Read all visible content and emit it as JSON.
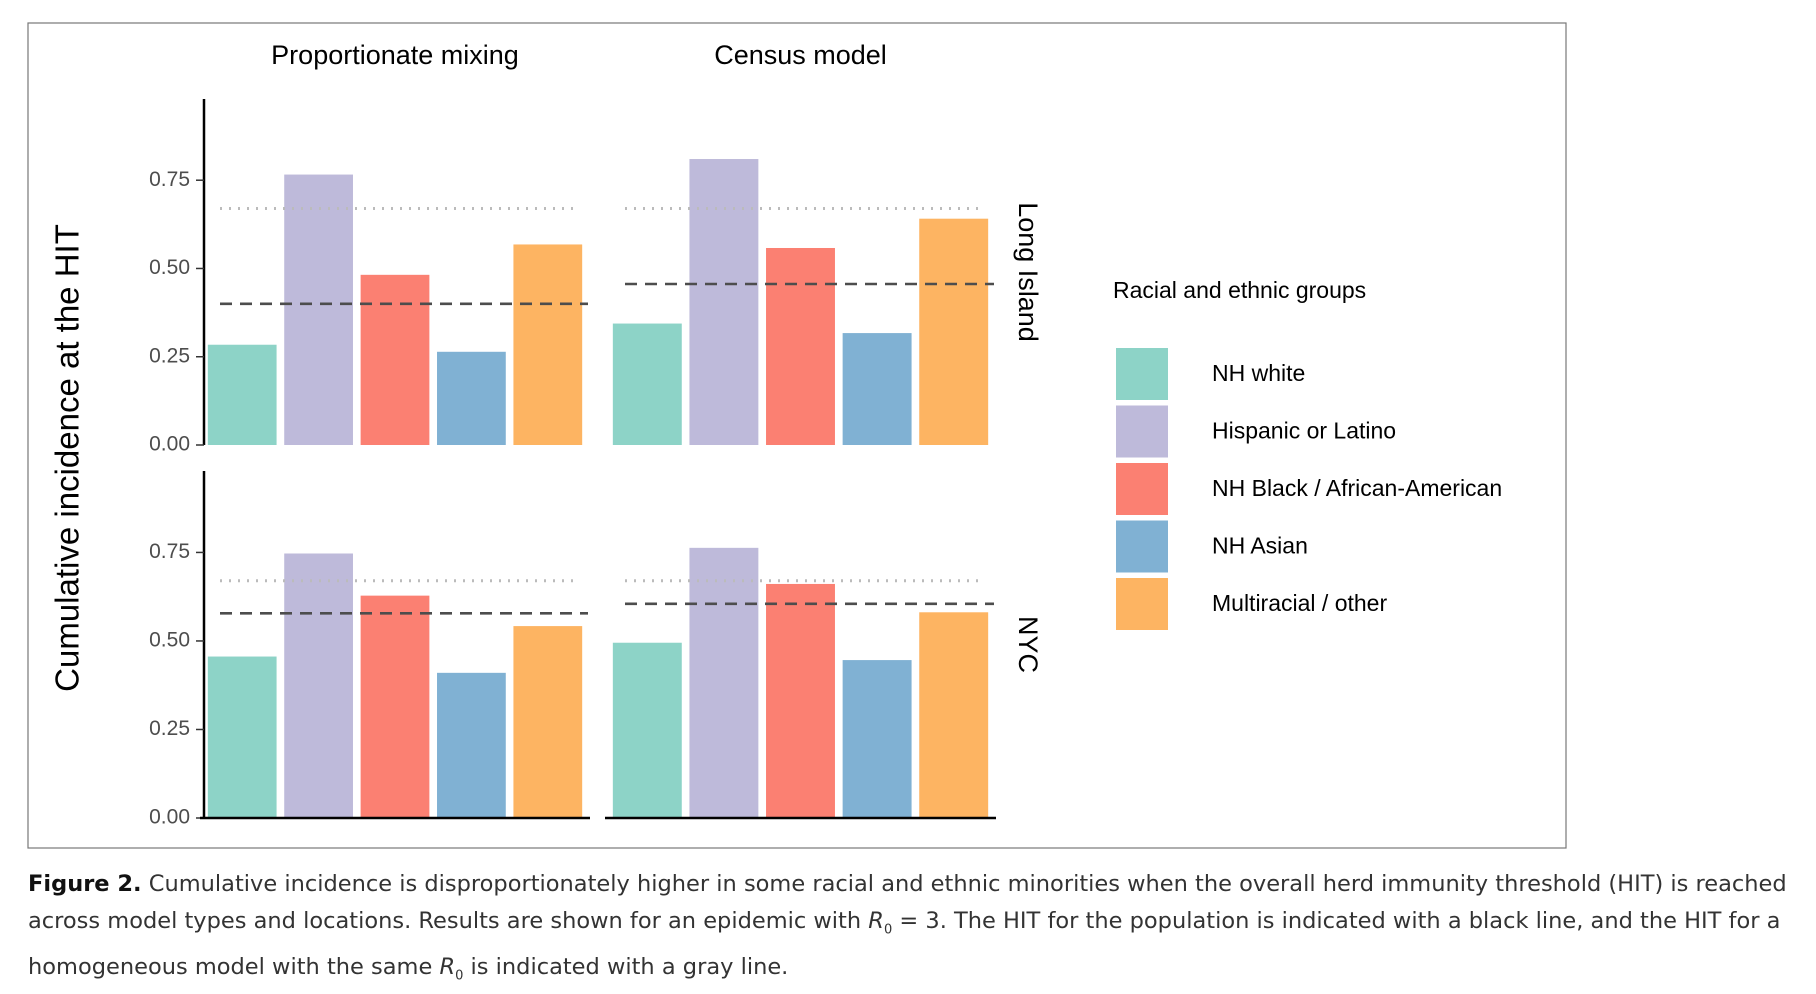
{
  "chart_data": {
    "type": "bar",
    "ylabel": "Cumulative incidence at the HIT",
    "legend_title": "Racial and ethnic groups",
    "categories": [
      "NH white",
      "Hispanic or Latino",
      "NH Black / African-American",
      "NH Asian",
      "Multiracial / other"
    ],
    "colors": [
      "#8dd3c7",
      "#bebada",
      "#fb8072",
      "#80b1d3",
      "#fdb462"
    ],
    "facet_columns": [
      "Proportionate mixing",
      "Census model"
    ],
    "facet_rows": [
      "Long Island",
      "NYC"
    ],
    "ylim": [
      0,
      0.98
    ],
    "yticks": [
      {
        "value": 0,
        "label": "0.00"
      },
      {
        "value": 0.25,
        "label": "0.25"
      },
      {
        "value": 0.5,
        "label": "0.50"
      },
      {
        "value": 0.75,
        "label": "0.75"
      }
    ],
    "panels": [
      [
        {
          "values": [
            0.284,
            0.766,
            0.482,
            0.264,
            0.568
          ],
          "hit": 0.4,
          "homogeneous_hit": 0.67
        },
        {
          "values": [
            0.344,
            0.81,
            0.558,
            0.317,
            0.641
          ],
          "hit": 0.456,
          "homogeneous_hit": 0.67
        }
      ],
      [
        {
          "values": [
            0.456,
            0.747,
            0.628,
            0.41,
            0.542
          ],
          "hit": 0.578,
          "homogeneous_hit": 0.67
        },
        {
          "values": [
            0.495,
            0.763,
            0.661,
            0.446,
            0.581
          ],
          "hit": 0.605,
          "homogeneous_hit": 0.67
        }
      ]
    ]
  },
  "caption": {
    "label": "Figure 2.",
    "text1": "Cumulative incidence is disproportionately higher in some racial and ethnic minorities when the overall herd immunity threshold (HIT) is reached across model types and locations. Results are shown for an epidemic with",
    "symbol": "R",
    "subscript": "0",
    "text2": "= 3. The HIT for the population is indicated with a black line, and the HIT for a homogeneous model with the same",
    "text3": "is indicated with a gray line."
  }
}
